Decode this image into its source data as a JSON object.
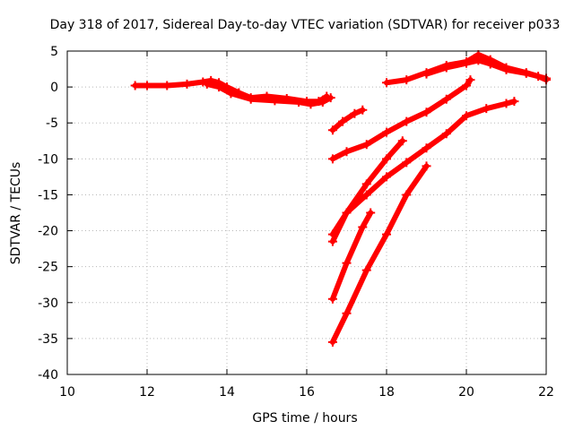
{
  "chart_data": {
    "type": "scatter",
    "title": "Day 318 of 2017, Sidereal Day-to-day VTEC variation (SDTVAR) for receiver p033",
    "xlabel": "GPS time / hours",
    "ylabel": "SDTVAR / TECUs",
    "xlim": [
      10,
      22
    ],
    "ylim": [
      -40,
      5
    ],
    "xticks": [
      {
        "value": 10,
        "label": "10"
      },
      {
        "value": 12,
        "label": "12"
      },
      {
        "value": 14,
        "label": "14"
      },
      {
        "value": 16,
        "label": "16"
      },
      {
        "value": 18,
        "label": "18"
      },
      {
        "value": 20,
        "label": "20"
      },
      {
        "value": 22,
        "label": "22"
      }
    ],
    "yticks": [
      {
        "value": 5,
        "label": "5"
      },
      {
        "value": 0,
        "label": "0"
      },
      {
        "value": -5,
        "label": "-5"
      },
      {
        "value": -10,
        "label": "-10"
      },
      {
        "value": -15,
        "label": "-15"
      },
      {
        "value": -20,
        "label": "-20"
      },
      {
        "value": -25,
        "label": "-25"
      },
      {
        "value": -30,
        "label": "-30"
      },
      {
        "value": -35,
        "label": "-35"
      },
      {
        "value": -40,
        "label": "-40"
      }
    ],
    "grid": true,
    "marker": "plus",
    "color": "#ff0000",
    "series": [
      {
        "points": [
          [
            11.7,
            0.2
          ],
          [
            12.0,
            0.2
          ],
          [
            12.5,
            0.2
          ],
          [
            13.0,
            0.4
          ],
          [
            13.4,
            0.7
          ],
          [
            13.6,
            0.9
          ],
          [
            13.8,
            0.6
          ],
          [
            14.0,
            0.0
          ],
          [
            14.3,
            -0.8
          ],
          [
            14.6,
            -1.5
          ],
          [
            15.0,
            -1.3
          ],
          [
            15.5,
            -1.6
          ],
          [
            16.0,
            -2.0
          ],
          [
            16.3,
            -2.0
          ],
          [
            16.5,
            -1.3
          ]
        ]
      },
      {
        "points": [
          [
            13.5,
            0.4
          ],
          [
            13.8,
            0.0
          ],
          [
            14.1,
            -0.9
          ],
          [
            14.6,
            -1.7
          ],
          [
            15.2,
            -1.9
          ],
          [
            15.8,
            -2.1
          ],
          [
            16.1,
            -2.4
          ],
          [
            16.4,
            -2.1
          ],
          [
            16.6,
            -1.5
          ]
        ]
      },
      {
        "points": [
          [
            16.65,
            -6.0
          ],
          [
            16.9,
            -4.8
          ],
          [
            17.2,
            -3.7
          ],
          [
            17.4,
            -3.2
          ]
        ]
      },
      {
        "points": [
          [
            16.65,
            -10.0
          ],
          [
            17.0,
            -9.0
          ],
          [
            17.5,
            -8.0
          ],
          [
            18.0,
            -6.3
          ],
          [
            18.5,
            -4.8
          ],
          [
            19.0,
            -3.5
          ],
          [
            19.5,
            -1.7
          ],
          [
            20.0,
            0.2
          ],
          [
            20.1,
            1.0
          ]
        ]
      },
      {
        "points": [
          [
            16.65,
            -20.5
          ],
          [
            17.0,
            -17.5
          ],
          [
            17.5,
            -15.0
          ],
          [
            18.0,
            -12.5
          ],
          [
            18.5,
            -10.5
          ],
          [
            19.0,
            -8.5
          ],
          [
            19.5,
            -6.5
          ],
          [
            20.0,
            -4.0
          ],
          [
            20.5,
            -3.0
          ],
          [
            21.0,
            -2.3
          ],
          [
            21.2,
            -2.0
          ]
        ]
      },
      {
        "points": [
          [
            16.65,
            -21.5
          ],
          [
            17.0,
            -17.5
          ],
          [
            17.5,
            -13.5
          ],
          [
            18.0,
            -10.0
          ],
          [
            18.4,
            -7.5
          ]
        ]
      },
      {
        "points": [
          [
            16.65,
            -29.5
          ],
          [
            17.0,
            -24.5
          ],
          [
            17.4,
            -19.5
          ],
          [
            17.6,
            -17.5
          ]
        ]
      },
      {
        "points": [
          [
            16.65,
            -35.5
          ],
          [
            17.0,
            -31.5
          ],
          [
            17.5,
            -25.5
          ],
          [
            18.0,
            -20.5
          ],
          [
            18.5,
            -15.0
          ],
          [
            19.0,
            -11.0
          ]
        ]
      },
      {
        "points": [
          [
            18.0,
            0.6
          ],
          [
            18.5,
            1.0
          ],
          [
            19.0,
            2.0
          ],
          [
            19.5,
            3.0
          ],
          [
            20.0,
            3.5
          ],
          [
            20.3,
            4.5
          ],
          [
            20.6,
            3.8
          ],
          [
            21.0,
            2.7
          ],
          [
            21.5,
            2.0
          ],
          [
            21.8,
            1.5
          ],
          [
            22.0,
            1.0
          ]
        ]
      },
      {
        "points": [
          [
            19.0,
            1.8
          ],
          [
            19.5,
            2.7
          ],
          [
            20.0,
            3.3
          ],
          [
            20.3,
            3.7
          ],
          [
            20.6,
            3.2
          ],
          [
            21.0,
            2.4
          ],
          [
            21.5,
            1.9
          ],
          [
            22.0,
            1.2
          ]
        ]
      }
    ]
  }
}
